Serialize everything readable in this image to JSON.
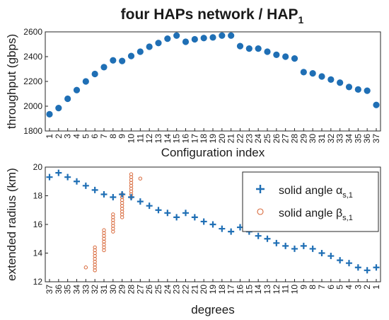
{
  "title": {
    "main": "four HAPs network / HAP",
    "sub": "1"
  },
  "colors": {
    "blue": "#1f6fb5",
    "orange": "#d8683a",
    "axis": "#262626"
  },
  "chart_data": [
    {
      "type": "scatter",
      "title": "four HAPs network / HAP1",
      "xlabel": "Configuration index",
      "ylabel": "throughput (gbps)",
      "x": [
        1,
        2,
        3,
        4,
        5,
        6,
        7,
        8,
        9,
        10,
        11,
        12,
        13,
        14,
        15,
        16,
        17,
        18,
        19,
        20,
        21,
        22,
        23,
        24,
        25,
        26,
        27,
        28,
        29,
        30,
        31,
        32,
        33,
        34,
        35,
        36,
        37
      ],
      "xlim": [
        1,
        37
      ],
      "ylim": [
        1800,
        2600
      ],
      "yticks": [
        1800,
        2000,
        2200,
        2400,
        2600
      ],
      "series": [
        {
          "marker": "filled-circle",
          "color": "#1f6fb5",
          "values": [
            1935,
            1985,
            2060,
            2130,
            2200,
            2260,
            2315,
            2370,
            2365,
            2405,
            2440,
            2480,
            2510,
            2545,
            2570,
            2520,
            2540,
            2550,
            2555,
            2570,
            2570,
            2485,
            2465,
            2465,
            2440,
            2415,
            2400,
            2385,
            2275,
            2265,
            2240,
            2215,
            2190,
            2155,
            2135,
            2125,
            2010
          ]
        }
      ],
      "grid": false
    },
    {
      "type": "scatter",
      "xlabel": "degrees",
      "ylabel": "extended radius (km)",
      "x_categories": [
        37,
        36,
        35,
        34,
        33,
        32,
        31,
        30,
        29,
        28,
        27,
        26,
        25,
        24,
        23,
        22,
        21,
        20,
        19,
        18,
        17,
        16,
        15,
        14,
        13,
        12,
        11,
        10,
        9,
        8,
        7,
        6,
        5,
        4,
        3,
        2,
        1
      ],
      "ylim": [
        12,
        20
      ],
      "yticks": [
        12,
        14,
        16,
        18,
        20
      ],
      "legend_position": "top-right",
      "grid": false,
      "series": [
        {
          "name": "solid angle αs,1",
          "marker": "plus",
          "color": "#1f6fb5",
          "values": [
            19.3,
            19.6,
            19.3,
            19.0,
            18.7,
            18.4,
            18.1,
            17.9,
            18.1,
            17.9,
            17.6,
            17.3,
            17.0,
            16.8,
            16.5,
            16.8,
            16.5,
            16.2,
            16.0,
            15.7,
            15.5,
            15.8,
            15.5,
            15.2,
            15.0,
            14.7,
            14.5,
            14.3,
            14.5,
            14.3,
            14.0,
            13.8,
            13.5,
            13.3,
            13.0,
            12.8,
            13.0
          ]
        },
        {
          "name": "solid angle βs,1",
          "marker": "open-circle",
          "color": "#d8683a",
          "groups": [
            {
              "x": 33,
              "values": [
                13.0
              ]
            },
            {
              "x": 32,
              "values": [
                12.8,
                13.0,
                13.2,
                13.4,
                13.6,
                13.8,
                14.0,
                14.2,
                14.4
              ]
            },
            {
              "x": 31,
              "values": [
                14.2,
                14.4,
                14.6,
                14.8,
                15.0,
                15.2,
                15.4,
                15.6
              ]
            },
            {
              "x": 30,
              "values": [
                15.5,
                15.7,
                15.9,
                16.1,
                16.3,
                16.5,
                16.7
              ]
            },
            {
              "x": 29,
              "values": [
                16.5,
                16.7,
                16.9,
                17.1,
                17.3,
                17.5,
                17.7,
                17.9,
                18.1
              ]
            },
            {
              "x": 28,
              "values": [
                17.9,
                18.1,
                18.3,
                18.5,
                18.7,
                18.9,
                19.1,
                19.3,
                19.5
              ]
            },
            {
              "x": 27,
              "values": [
                19.2
              ]
            }
          ]
        }
      ],
      "legend": {
        "entries": [
          {
            "label": "solid angle α",
            "sub": "s,1",
            "marker": "plus"
          },
          {
            "label": "solid angle β",
            "sub": "s,1",
            "marker": "open-circle"
          }
        ]
      }
    }
  ]
}
